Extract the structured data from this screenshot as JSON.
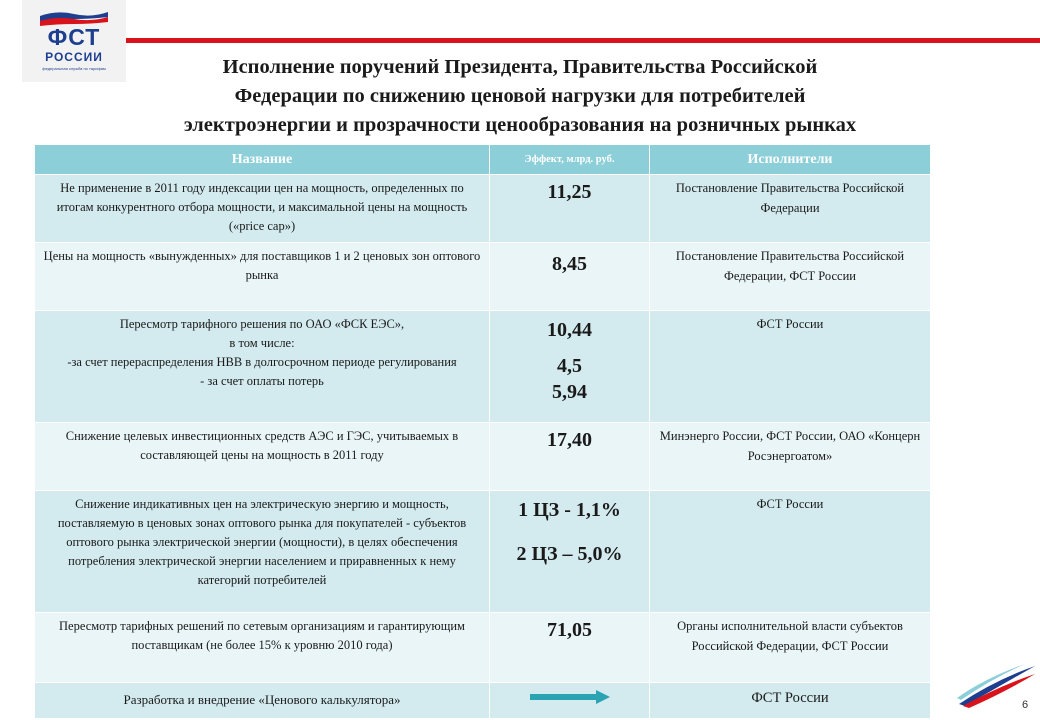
{
  "logo": {
    "abbr": "ФСТ",
    "name": "РОССИИ",
    "tagline": "федеральная служба по тарифам",
    "colors": {
      "white": "#ffffff",
      "blue": "#1e3f8f",
      "red": "#d8131b"
    }
  },
  "title": {
    "line1": "Исполнение поручений Президента, Правительства Российской",
    "line2": "Федерации по снижению ценовой нагрузки для потребителей",
    "line3": "электроэнергии и прозрачности ценообразования на розничных рынках"
  },
  "table": {
    "headers": {
      "name": "Название",
      "effect": "Эффект, млрд. руб.",
      "executors": "Исполнители"
    },
    "rows": [
      {
        "name": "Не применение в 2011 году индексации цен на мощность, определенных по итогам конкурентного отбора мощности, и максимальной цены на мощность («price cap»)",
        "effect": "11,25",
        "executors": "Постановление Правительства Российской Федерации"
      },
      {
        "name": "Цены на мощность «вынужденных» для поставщиков 1 и 2 ценовых зон оптового рынка",
        "effect": "8,45",
        "executors": "Постановление Правительства Российской Федерации, ФСТ России"
      },
      {
        "name_lines": [
          "Пересмотр тарифного решения по ОАО «ФСК ЕЭС»,",
          "в том числе:",
          "-за счет перераспределения НВВ в долгосрочном периоде регулирования",
          "- за счет оплаты потерь"
        ],
        "effect_total": "10,44",
        "effect_part1": "4,5",
        "effect_part2": "5,94",
        "executors": "ФСТ России"
      },
      {
        "name": "Снижение целевых инвестиционных средств АЭС и ГЭС, учитываемых в составляющей цены на мощность в 2011 году",
        "effect": "17,40",
        "executors": "Минэнерго России, ФСТ России, ОАО «Концерн Росэнергоатом»"
      },
      {
        "name": "Снижение индикативных цен на электрическую энергию и мощность, поставляемую в ценовых зонах оптового рынка для покупателей - субъектов оптового рынка электрической энергии (мощности), в целях обеспечения потребления электрической энергии населением и приравненных к нему категорий потребителей",
        "effect_zone1": "1 ЦЗ - 1,1%",
        "effect_zone2": "2 ЦЗ – 5,0%",
        "executors": "ФСТ России"
      },
      {
        "name": "Пересмотр тарифных решений по сетевым организациям и гарантирующим поставщикам (не более 15% к уровню 2010 года)",
        "effect": "71,05",
        "executors": "Органы исполнительной власти субъектов Российской Федерации, ФСТ России"
      },
      {
        "name": "Разработка и внедрение «Ценового калькулятора»",
        "effect_icon": "arrow-right-icon",
        "executors": "ФСТ России"
      }
    ]
  },
  "page_number": "6",
  "colors": {
    "header_bg": "#8dcfd9",
    "row_odd_bg": "#d3ebef",
    "row_even_bg": "#e9f5f7",
    "accent_red": "#d8131b",
    "arrow": "#2aa3b3"
  }
}
